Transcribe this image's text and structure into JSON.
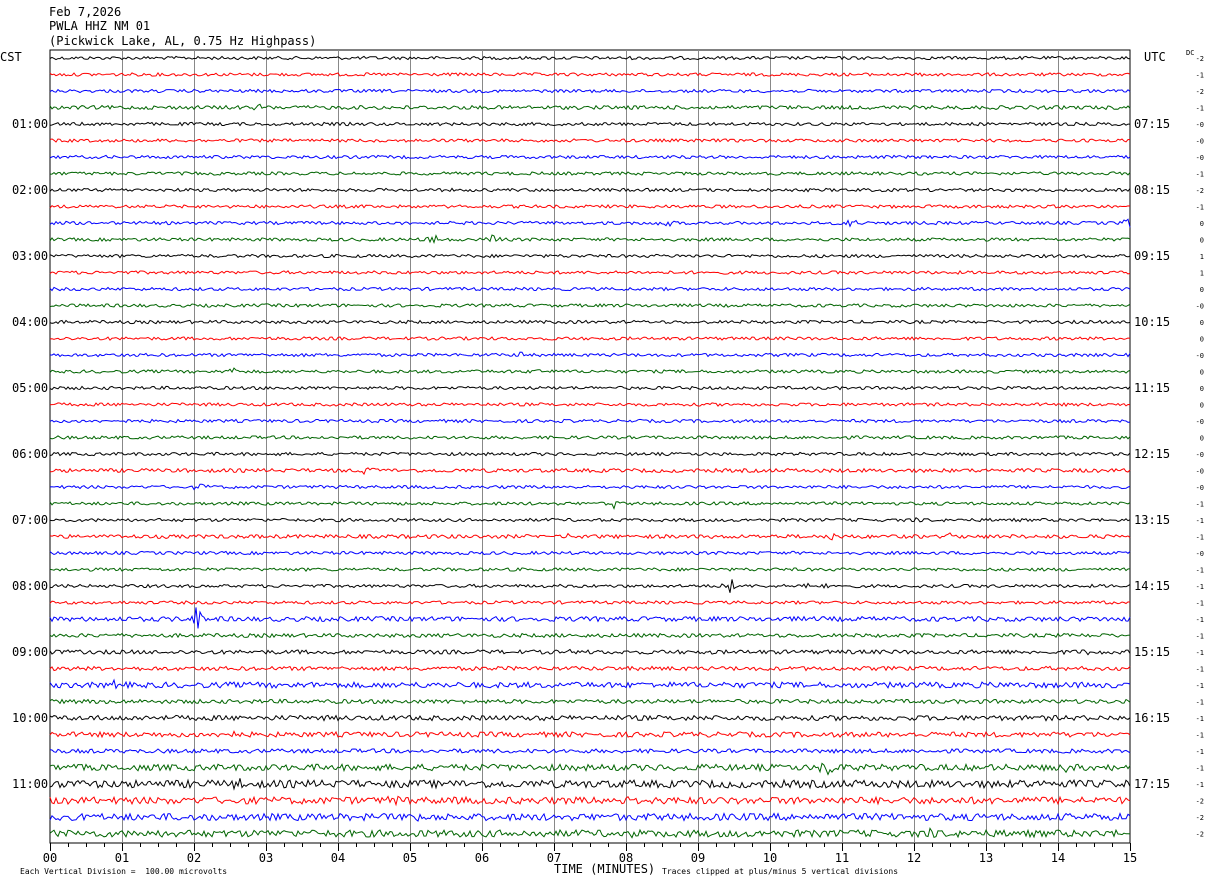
{
  "header": {
    "date": "Feb 7,2026",
    "station": "PWLA HHZ NM 01",
    "location": "(Pickwick Lake, AL, 0.75 Hz Highpass)"
  },
  "timezones": {
    "left": "CST",
    "right": "UTC",
    "dc": "DC"
  },
  "footer": {
    "scale": "Each Vertical Division =  100.00 microvolts",
    "xtitle": "TIME (MINUTES)",
    "clip": "Traces clipped at plus/minus 5 vertical divisions"
  },
  "chart_data": {
    "type": "line",
    "title": "",
    "xlabel": "TIME (MINUTES)",
    "xlim": [
      0,
      15
    ],
    "x_ticks": [
      "00",
      "01",
      "02",
      "03",
      "04",
      "05",
      "06",
      "07",
      "08",
      "09",
      "10",
      "11",
      "12",
      "13",
      "14",
      "15"
    ],
    "rows_per_hour": 4,
    "minutes_per_row": 15,
    "trace_colors": [
      "#000000",
      "#ff0000",
      "#0000ff",
      "#006400"
    ],
    "left_hour_labels": [
      "01:00",
      "02:00",
      "03:00",
      "04:00",
      "05:00",
      "06:00",
      "07:00",
      "08:00",
      "09:00",
      "10:00",
      "11:00"
    ],
    "right_hour_labels": [
      "07:15",
      "08:15",
      "09:15",
      "10:15",
      "11:15",
      "12:15",
      "13:15",
      "14:15",
      "15:15",
      "16:15",
      "17:15"
    ],
    "dc_offsets": [
      "-2",
      "-1",
      "-2",
      "-1",
      "-0",
      "-0",
      "-0",
      "-1",
      "-2",
      "-1",
      "0",
      "0",
      "1",
      "1",
      "0",
      "-0",
      "0",
      "0",
      "-0",
      "0",
      "0",
      "0",
      "-0",
      "0",
      "-0",
      "-0",
      "-0",
      "-1",
      "-1",
      "-1",
      "-0",
      "-1",
      "-1",
      "-1",
      "-1",
      "-1",
      "-1",
      "-1",
      "-1",
      "-1",
      "-1",
      "-1",
      "-1",
      "-1",
      "-1",
      "-2",
      "-2",
      "-2"
    ],
    "traces": [
      {
        "amp": 1.0,
        "events": []
      },
      {
        "amp": 1.0,
        "events": [
          {
            "t": 12.2,
            "a": 3
          }
        ]
      },
      {
        "amp": 1.0,
        "events": [
          {
            "t": 10.8,
            "a": 3
          }
        ]
      },
      {
        "amp": 1.2,
        "events": [
          {
            "t": 2.9,
            "a": 4
          }
        ]
      },
      {
        "amp": 1.0,
        "events": []
      },
      {
        "amp": 1.0,
        "events": []
      },
      {
        "amp": 1.0,
        "events": []
      },
      {
        "amp": 1.0,
        "events": []
      },
      {
        "amp": 1.0,
        "events": []
      },
      {
        "amp": 1.0,
        "events": []
      },
      {
        "amp": 1.0,
        "events": [
          {
            "t": 8.55,
            "a": 5
          },
          {
            "t": 11.15,
            "a": 12
          },
          {
            "t": 14.98,
            "a": 12
          }
        ]
      },
      {
        "amp": 1.0,
        "events": [
          {
            "t": 5.3,
            "a": 10
          },
          {
            "t": 6.15,
            "a": 8
          }
        ]
      },
      {
        "amp": 1.0,
        "events": []
      },
      {
        "amp": 1.0,
        "events": []
      },
      {
        "amp": 1.0,
        "events": []
      },
      {
        "amp": 1.0,
        "events": []
      },
      {
        "amp": 1.0,
        "events": []
      },
      {
        "amp": 1.0,
        "events": []
      },
      {
        "amp": 1.0,
        "events": [
          {
            "t": 6.55,
            "a": 4
          }
        ]
      },
      {
        "amp": 1.0,
        "events": [
          {
            "t": 2.55,
            "a": 6
          },
          {
            "t": 6.8,
            "a": 3
          }
        ]
      },
      {
        "amp": 1.0,
        "events": []
      },
      {
        "amp": 1.0,
        "events": []
      },
      {
        "amp": 1.0,
        "events": []
      },
      {
        "amp": 1.0,
        "events": []
      },
      {
        "amp": 1.0,
        "events": []
      },
      {
        "amp": 1.2,
        "events": [
          {
            "t": 4.35,
            "a": 5
          },
          {
            "t": 4.55,
            "a": 5
          }
        ]
      },
      {
        "amp": 1.0,
        "events": [
          {
            "t": 2.1,
            "a": 6
          }
        ]
      },
      {
        "amp": 1.0,
        "events": [
          {
            "t": 7.85,
            "a": 6
          }
        ]
      },
      {
        "amp": 1.0,
        "events": [
          {
            "t": 12.0,
            "a": 3
          }
        ]
      },
      {
        "amp": 1.2,
        "events": [
          {
            "t": 7.15,
            "a": 4
          },
          {
            "t": 10.85,
            "a": 5
          },
          {
            "t": 12.5,
            "a": 4
          }
        ]
      },
      {
        "amp": 1.0,
        "events": []
      },
      {
        "amp": 1.0,
        "events": []
      },
      {
        "amp": 1.0,
        "events": [
          {
            "t": 9.45,
            "a": 9
          },
          {
            "t": 10.55,
            "a": 7
          },
          {
            "t": 10.7,
            "a": 5
          }
        ]
      },
      {
        "amp": 1.0,
        "events": []
      },
      {
        "amp": 1.5,
        "events": [
          {
            "t": 2.05,
            "a": 16
          }
        ]
      },
      {
        "amp": 1.2,
        "events": []
      },
      {
        "amp": 1.3,
        "events": [
          {
            "t": 7.3,
            "a": 3
          },
          {
            "t": 14.4,
            "a": 3
          }
        ]
      },
      {
        "amp": 1.3,
        "events": []
      },
      {
        "amp": 1.8,
        "events": [
          {
            "t": 0.9,
            "a": 4
          }
        ]
      },
      {
        "amp": 1.3,
        "events": []
      },
      {
        "amp": 1.6,
        "events": []
      },
      {
        "amp": 1.6,
        "events": [
          {
            "t": 2.5,
            "a": 4
          }
        ]
      },
      {
        "amp": 1.3,
        "events": []
      },
      {
        "amp": 2.0,
        "events": [
          {
            "t": 10.8,
            "a": 12
          },
          {
            "t": 14.1,
            "a": 8
          }
        ]
      },
      {
        "amp": 2.4,
        "events": [
          {
            "t": 2.6,
            "a": 6
          },
          {
            "t": 4.6,
            "a": 6
          },
          {
            "t": 13.4,
            "a": 6
          }
        ]
      },
      {
        "amp": 2.2,
        "events": [
          {
            "t": 4.8,
            "a": 5
          },
          {
            "t": 8.0,
            "a": 4
          }
        ]
      },
      {
        "amp": 2.2,
        "events": [
          {
            "t": 5.0,
            "a": 7
          }
        ]
      },
      {
        "amp": 2.2,
        "events": [
          {
            "t": 8.1,
            "a": 6
          },
          {
            "t": 12.2,
            "a": 6
          }
        ]
      }
    ]
  }
}
